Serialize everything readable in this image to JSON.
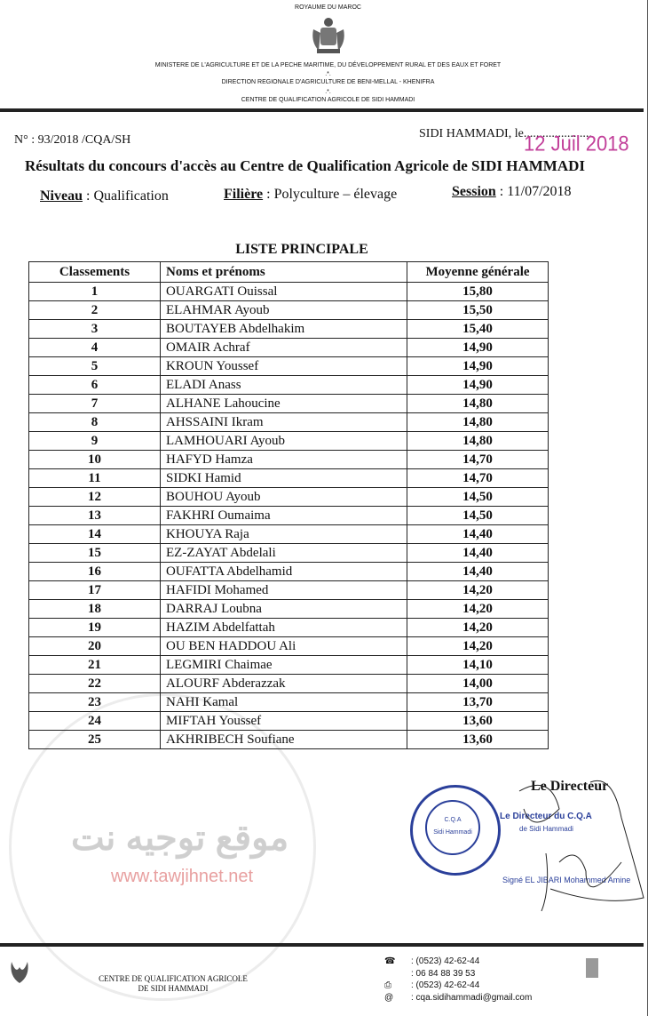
{
  "letterhead": {
    "kingdom": "ROYAUME DU MAROC",
    "ministry": "MINISTERE DE L'AGRICULTURE ET DE LA PECHE MARITIME, DU DÉVELOPPEMENT RURAL ET DES EAUX ET FORET",
    "direction": "DIRECTION REGIONALE D'AGRICULTURE DE BENI-MELLAL - KHENIFRA",
    "centre": "CENTRE DE QUALIFICATION AGRICOLE DE SIDI HAMMADI",
    "separator": ".*."
  },
  "reference": "N° : 93/2018 /CQA/SH",
  "place_date": "SIDI HAMMADI, le......................",
  "date_stamp": "12 Juil 2018",
  "title": "Résultats du concours d'accès au Centre de Qualification Agricole de SIDI HAMMADI",
  "meta": {
    "niveau_label": "Niveau",
    "niveau": " : Qualification",
    "filiere_label": "Filière",
    "filiere": " : Polyculture – élevage",
    "session_label": "Session",
    "session": " : 11/07/2018"
  },
  "list_title": "LISTE PRINCIPALE",
  "table": {
    "headers": [
      "Classements",
      "Noms et prénoms",
      "Moyenne générale"
    ],
    "rows": [
      [
        "1",
        "OUARGATI Ouissal",
        "15,80"
      ],
      [
        "2",
        "ELAHMAR Ayoub",
        "15,50"
      ],
      [
        "3",
        "BOUTAYEB Abdelhakim",
        "15,40"
      ],
      [
        "4",
        "OMAIR Achraf",
        "14,90"
      ],
      [
        "5",
        "KROUN Youssef",
        "14,90"
      ],
      [
        "6",
        "ELADI Anass",
        "14,90"
      ],
      [
        "7",
        "ALHANE Lahoucine",
        "14,80"
      ],
      [
        "8",
        "AHSSAINI Ikram",
        "14,80"
      ],
      [
        "9",
        "LAMHOUARI Ayoub",
        "14,80"
      ],
      [
        "10",
        "HAFYD Hamza",
        "14,70"
      ],
      [
        "11",
        "SIDKI Hamid",
        "14,70"
      ],
      [
        "12",
        "BOUHOU Ayoub",
        "14,50"
      ],
      [
        "13",
        "FAKHRI Oumaima",
        "14,50"
      ],
      [
        "14",
        "KHOUYA Raja",
        "14,40"
      ],
      [
        "15",
        "EZ-ZAYAT Abdelali",
        "14,40"
      ],
      [
        "16",
        "OUFATTA Abdelhamid",
        "14,40"
      ],
      [
        "17",
        "HAFIDI Mohamed",
        "14,20"
      ],
      [
        "18",
        "DARRAJ Loubna",
        "14,20"
      ],
      [
        "19",
        "HAZIM Abdelfattah",
        "14,20"
      ],
      [
        "20",
        "OU BEN HADDOU Ali",
        "14,20"
      ],
      [
        "21",
        "LEGMIRI Chaimae",
        "14,10"
      ],
      [
        "22",
        "ALOURF Abderazzak",
        "14,00"
      ],
      [
        "23",
        "NAHI Kamal",
        "13,70"
      ],
      [
        "24",
        "MIFTAH Youssef",
        "13,60"
      ],
      [
        "25",
        "AKHRIBECH Soufiane",
        "13,60"
      ]
    ]
  },
  "signature": {
    "role": "Le Directeur",
    "stamp_title": "Le Directeur du C.Q.A",
    "stamp_sub": "de Sidi Hammadi",
    "signed": "Signé  EL JIBARI Mohammed Amine",
    "seal_text": "ROYAUME DU MAROC · C.Q.A Sidi Hammadi · M.A.P.M.D.R.E.F"
  },
  "watermark": {
    "arabic": "موقع توجيه نت",
    "url": "www.tawjihnet.net"
  },
  "footer": {
    "centre_line1": "CENTRE DE QUALIFICATION AGRICOLE",
    "centre_line2": "DE SIDI HAMMADI",
    "phone": ": (0523) 42-62-44",
    "mobile": ": 06 84 88 39 53",
    "fax": ": (0523) 42-62-44",
    "email": ": cqa.sidihammadi@gmail.com"
  },
  "colors": {
    "stamp_blue": "#2a3f9a",
    "date_pink": "#c2409a",
    "watermark_red": "#e8a0a0"
  }
}
